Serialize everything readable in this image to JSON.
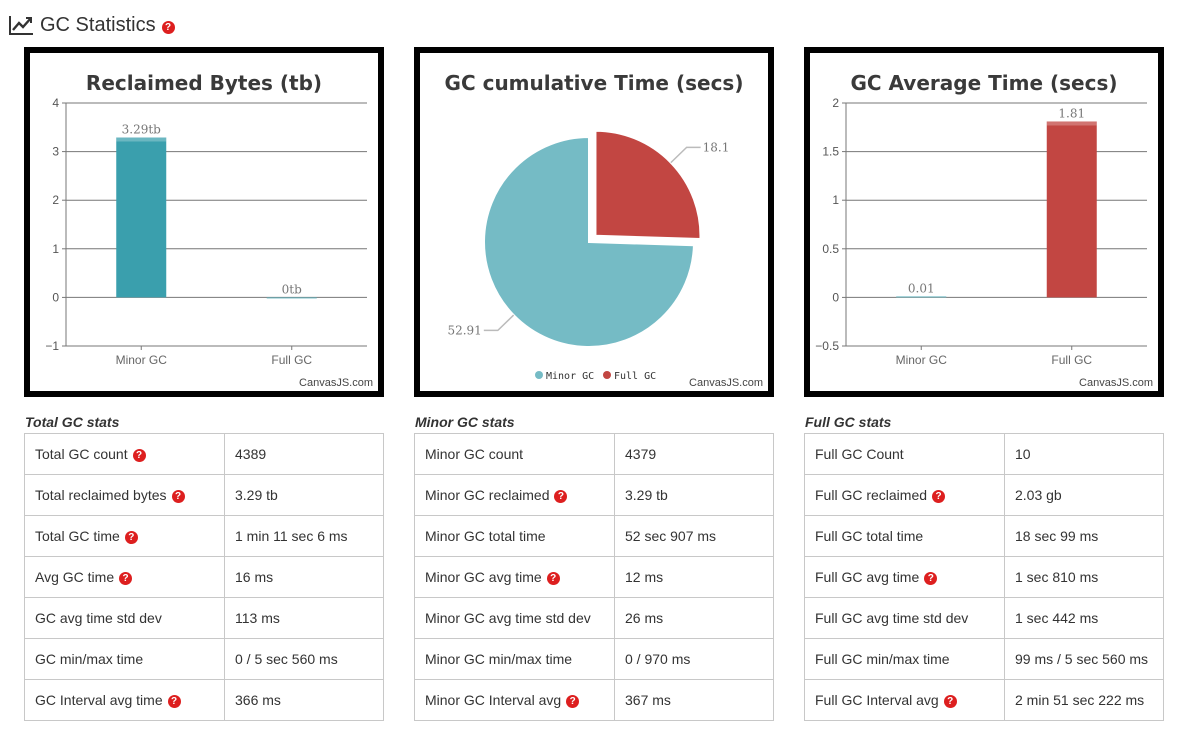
{
  "header": {
    "title": "GC Statistics",
    "icon": "trend-line-icon",
    "help_icon": "help-icon"
  },
  "colors": {
    "teal": "#3a9fad",
    "teal_pie": "#75bbc5",
    "red": "#c24642",
    "help_red": "#dd1f1f",
    "border": "#000000"
  },
  "credit": "CanvasJS.com",
  "chart_data": [
    {
      "type": "bar",
      "title": "Reclaimed Bytes (tb)",
      "categories": [
        "Minor GC",
        "Full GC"
      ],
      "values": [
        3.29,
        0
      ],
      "data_labels": [
        "3.29tb",
        "0tb"
      ],
      "colors": [
        "#3a9fad",
        "#3a9fad"
      ],
      "ylim": [
        -1,
        4
      ],
      "yticks": [
        -1,
        0,
        1,
        2,
        3,
        4
      ],
      "ytick_labels": [
        "−1",
        "0",
        "1",
        "2",
        "3",
        "4"
      ],
      "grid": true
    },
    {
      "type": "pie",
      "title": "GC cumulative Time (secs)",
      "categories": [
        "Minor GC",
        "Full GC"
      ],
      "values": [
        52.91,
        18.1
      ],
      "data_labels": [
        "52.91",
        "18.1"
      ],
      "colors": [
        "#75bbc5",
        "#c24642"
      ],
      "exploded": [
        false,
        true
      ],
      "legend": [
        "Minor GC",
        "Full GC"
      ],
      "legend_position": "bottom"
    },
    {
      "type": "bar",
      "title": "GC Average Time (secs)",
      "categories": [
        "Minor GC",
        "Full GC"
      ],
      "values": [
        0.01,
        1.81
      ],
      "data_labels": [
        "0.01",
        "1.81"
      ],
      "colors": [
        "#3a9fad",
        "#c24642"
      ],
      "ylim": [
        -0.5,
        2
      ],
      "yticks": [
        -0.5,
        0,
        0.5,
        1,
        1.5,
        2
      ],
      "ytick_labels": [
        "−0.5",
        "0",
        "0.5",
        "1",
        "1.5",
        "2"
      ],
      "grid": true
    }
  ],
  "tables": [
    {
      "title": "Total GC stats",
      "rows": [
        {
          "label": "Total GC count",
          "value": "4389",
          "help": true
        },
        {
          "label": "Total reclaimed bytes",
          "value": "3.29 tb",
          "help": true
        },
        {
          "label": "Total GC time",
          "value": "1 min 11 sec 6 ms",
          "help": true
        },
        {
          "label": "Avg GC time",
          "value": "16 ms",
          "help": true
        },
        {
          "label": "GC avg time std dev",
          "value": "113 ms",
          "help": false
        },
        {
          "label": "GC min/max time",
          "value": "0 / 5 sec 560 ms",
          "help": false
        },
        {
          "label": "GC Interval avg time",
          "value": "366 ms",
          "help": true
        }
      ]
    },
    {
      "title": "Minor GC stats",
      "rows": [
        {
          "label": "Minor GC count",
          "value": "4379",
          "help": false
        },
        {
          "label": "Minor GC reclaimed",
          "value": "3.29 tb",
          "help": true
        },
        {
          "label": "Minor GC total time",
          "value": "52 sec 907 ms",
          "help": false
        },
        {
          "label": "Minor GC avg time",
          "value": "12 ms",
          "help": true
        },
        {
          "label": "Minor GC avg time std dev",
          "value": "26 ms",
          "help": false
        },
        {
          "label": "Minor GC min/max time",
          "value": "0 / 970 ms",
          "help": false
        },
        {
          "label": "Minor GC Interval avg",
          "value": "367 ms",
          "help": true
        }
      ]
    },
    {
      "title": "Full GC stats",
      "rows": [
        {
          "label": "Full GC Count",
          "value": "10",
          "help": false
        },
        {
          "label": "Full GC reclaimed",
          "value": "2.03 gb",
          "help": true
        },
        {
          "label": "Full GC total time",
          "value": "18 sec 99 ms",
          "help": false
        },
        {
          "label": "Full GC avg time",
          "value": "1 sec 810 ms",
          "help": true
        },
        {
          "label": "Full GC avg time std dev",
          "value": "1 sec 442 ms",
          "help": false
        },
        {
          "label": "Full GC min/max time",
          "value": "99 ms / 5 sec 560 ms",
          "help": false
        },
        {
          "label": "Full GC Interval avg",
          "value": "2 min 51 sec 222 ms",
          "help": true
        }
      ]
    }
  ]
}
